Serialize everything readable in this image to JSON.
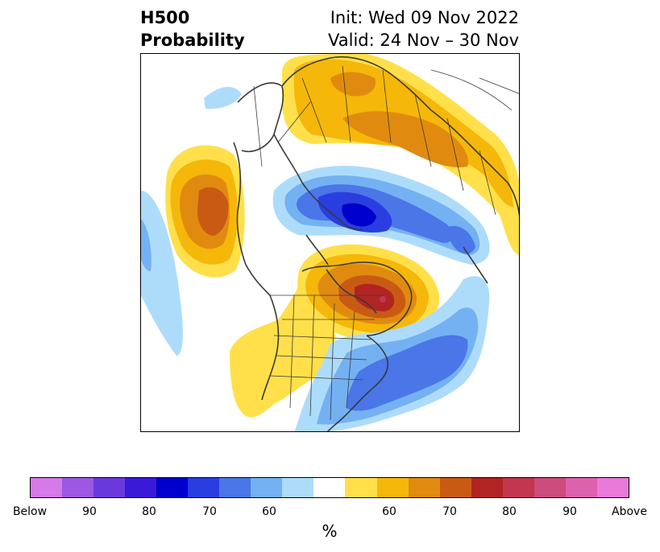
{
  "title": {
    "left_line1": "H500",
    "left_line2": "Probability",
    "right_line1": "Init: Wed 09 Nov 2022",
    "right_line2": "Valid: 24 Nov – 30 Nov"
  },
  "colorbar": {
    "unit": "%",
    "colors": [
      "#d57ae8",
      "#9c58e2",
      "#6a39db",
      "#3a1ad6",
      "#0000cc",
      "#2a3de0",
      "#4a76e8",
      "#74b1f2",
      "#addcfb",
      "#ffffff",
      "#ffe04a",
      "#f5b70a",
      "#e08b10",
      "#c95a14",
      "#b22424",
      "#c2364f",
      "#cc4c7e",
      "#dd62ae",
      "#e97ad9"
    ],
    "tick_labels": [
      "Below",
      "90",
      "80",
      "70",
      "60",
      "60",
      "70",
      "80",
      "90",
      "Above"
    ]
  },
  "map": {
    "projection": "north-polar-stereographic",
    "positive_anomalies": [
      "North Pacific / Gulf of Alaska",
      "Northern Canada / Hudson Bay",
      "Siberia / Arctic Russia",
      "Western United States"
    ],
    "negative_anomalies": [
      "Arctic Ocean",
      "Eastern United States / North Atlantic",
      "Eastern Pacific"
    ]
  }
}
